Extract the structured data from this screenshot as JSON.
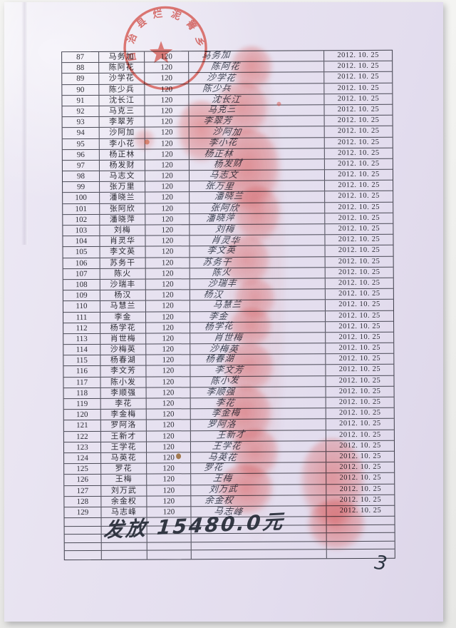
{
  "stamp": {
    "arc_text": "自治县烂泥箐乡",
    "color": "#d14a42"
  },
  "table": {
    "rows": [
      {
        "no": "87",
        "name": "马务加",
        "amount": "120",
        "signature": "马务加",
        "date": "2012. 10. 25"
      },
      {
        "no": "88",
        "name": "陈阿花",
        "amount": "120",
        "signature": "陈阿花",
        "date": "2012. 10. 25"
      },
      {
        "no": "89",
        "name": "沙学花",
        "amount": "120",
        "signature": "沙学花",
        "date": "2012. 10. 25"
      },
      {
        "no": "90",
        "name": "陈少兵",
        "amount": "120",
        "signature": "陈少兵",
        "date": "2012. 10. 25"
      },
      {
        "no": "91",
        "name": "沈长江",
        "amount": "120",
        "signature": "沈长江",
        "date": "2012. 10. 25"
      },
      {
        "no": "92",
        "name": "马克三",
        "amount": "120",
        "signature": "马克三",
        "date": "2012. 10. 25"
      },
      {
        "no": "93",
        "name": "李翠芳",
        "amount": "120",
        "signature": "李翠芳",
        "date": "2012. 10. 25"
      },
      {
        "no": "94",
        "name": "沙阿加",
        "amount": "120",
        "signature": "沙阿加",
        "date": "2012. 10. 25"
      },
      {
        "no": "95",
        "name": "李小花",
        "amount": "120",
        "signature": "李小花",
        "date": "2012. 10. 25"
      },
      {
        "no": "96",
        "name": "杨正林",
        "amount": "120",
        "signature": "杨正林",
        "date": "2012. 10. 25"
      },
      {
        "no": "97",
        "name": "杨发财",
        "amount": "120",
        "signature": "杨发财",
        "date": "2012. 10. 25"
      },
      {
        "no": "98",
        "name": "马志文",
        "amount": "120",
        "signature": "马志文",
        "date": "2012. 10. 25"
      },
      {
        "no": "99",
        "name": "张万里",
        "amount": "120",
        "signature": "张万里",
        "date": "2012. 10. 25"
      },
      {
        "no": "100",
        "name": "潘晓兰",
        "amount": "120",
        "signature": "潘晓兰",
        "date": "2012. 10. 25"
      },
      {
        "no": "101",
        "name": "张阿欣",
        "amount": "120",
        "signature": "张阿欣",
        "date": "2012. 10. 25"
      },
      {
        "no": "102",
        "name": "潘晓萍",
        "amount": "120",
        "signature": "潘晓萍",
        "date": "2012. 10. 25"
      },
      {
        "no": "103",
        "name": "刘梅",
        "amount": "120",
        "signature": "刘梅",
        "date": "2012. 10. 25"
      },
      {
        "no": "104",
        "name": "肖灵华",
        "amount": "120",
        "signature": "肖灵华",
        "date": "2012. 10. 25"
      },
      {
        "no": "105",
        "name": "李文英",
        "amount": "120",
        "signature": "李文英",
        "date": "2012. 10. 25"
      },
      {
        "no": "106",
        "name": "苏务干",
        "amount": "120",
        "signature": "苏务干",
        "date": "2012. 10. 25"
      },
      {
        "no": "107",
        "name": "陈火",
        "amount": "120",
        "signature": "陈火",
        "date": "2012. 10. 25"
      },
      {
        "no": "108",
        "name": "沙瑞丰",
        "amount": "120",
        "signature": "沙瑞丰",
        "date": "2012. 10. 25"
      },
      {
        "no": "109",
        "name": "杨汉",
        "amount": "120",
        "signature": "杨汉",
        "date": "2012. 10. 25"
      },
      {
        "no": "110",
        "name": "马慧兰",
        "amount": "120",
        "signature": "马慧兰",
        "date": "2012. 10. 25"
      },
      {
        "no": "111",
        "name": "李金",
        "amount": "120",
        "signature": "李金",
        "date": "2012. 10. 25"
      },
      {
        "no": "112",
        "name": "杨学花",
        "amount": "120",
        "signature": "杨学花",
        "date": "2012. 10. 25"
      },
      {
        "no": "113",
        "name": "肖世梅",
        "amount": "120",
        "signature": "肖世梅",
        "date": "2012. 10. 25"
      },
      {
        "no": "114",
        "name": "沙梅英",
        "amount": "120",
        "signature": "沙梅英",
        "date": "2012. 10. 25"
      },
      {
        "no": "115",
        "name": "杨春湖",
        "amount": "120",
        "signature": "杨春湖",
        "date": "2012. 10. 25"
      },
      {
        "no": "116",
        "name": "李文芳",
        "amount": "120",
        "signature": "李文芳",
        "date": "2012. 10. 25"
      },
      {
        "no": "117",
        "name": "陈小发",
        "amount": "120",
        "signature": "陈小发",
        "date": "2012. 10. 25"
      },
      {
        "no": "118",
        "name": "李顺强",
        "amount": "120",
        "signature": "李顺强",
        "date": "2012. 10. 25"
      },
      {
        "no": "119",
        "name": "李花",
        "amount": "120",
        "signature": "李花",
        "date": "2012. 10. 25"
      },
      {
        "no": "120",
        "name": "李金梅",
        "amount": "120",
        "signature": "李金梅",
        "date": "2012. 10. 25"
      },
      {
        "no": "121",
        "name": "罗阿洛",
        "amount": "120",
        "signature": "罗阿洛",
        "date": "2012. 10. 25"
      },
      {
        "no": "122",
        "name": "王新才",
        "amount": "120",
        "signature": "王新才",
        "date": "2012. 10. 25"
      },
      {
        "no": "123",
        "name": "王学花",
        "amount": "120",
        "signature": "王学花",
        "date": "2012. 10. 25"
      },
      {
        "no": "124",
        "name": "马英花",
        "amount": "120",
        "signature": "马英花",
        "date": "2012. 10. 25"
      },
      {
        "no": "125",
        "name": "罗花",
        "amount": "120",
        "signature": "罗花",
        "date": "2012. 10. 25"
      },
      {
        "no": "126",
        "name": "王梅",
        "amount": "120",
        "signature": "王梅",
        "date": "2012. 10. 25"
      },
      {
        "no": "127",
        "name": "刘万武",
        "amount": "120",
        "signature": "刘万武",
        "date": "2012. 10. 25"
      },
      {
        "no": "128",
        "name": "余金权",
        "amount": "120",
        "signature": "余金权",
        "date": "2012. 10. 25"
      },
      {
        "no": "129",
        "name": "马志峰",
        "amount": "120",
        "signature": "马志峰",
        "date": "2012. 10. 25"
      }
    ],
    "empty_row_count": 5
  },
  "summary": {
    "handwritten_total": "发放 15480.0元"
  },
  "page": {
    "number": "3"
  }
}
